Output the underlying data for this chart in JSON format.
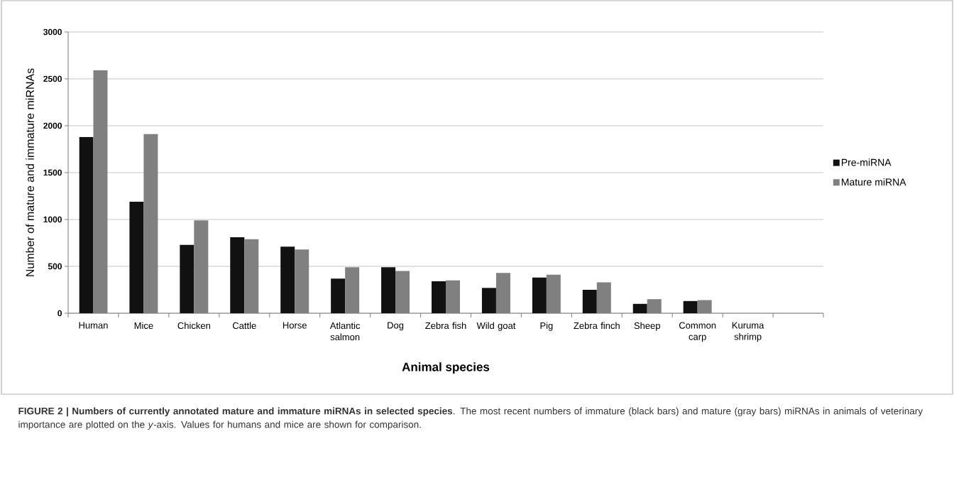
{
  "chart_data": {
    "type": "bar",
    "xlabel": "Animal species",
    "ylabel": "Number of mature and immature miRNAs",
    "categories": [
      "Human",
      "Mice",
      "Chicken",
      "Cattle",
      "Horse",
      "Atlantic salmon",
      "Dog",
      "Zebra fish",
      "Wild goat",
      "Pig",
      "Zebra finch",
      "Sheep",
      "Common carp",
      "Kuruma shrimp",
      null
    ],
    "series": [
      {
        "name": "Pre-miRNA",
        "color": "#111111",
        "values": [
          1880,
          1190,
          730,
          810,
          710,
          370,
          490,
          340,
          270,
          380,
          250,
          100,
          130,
          0,
          null
        ]
      },
      {
        "name": "Mature miRNA",
        "color": "#808080",
        "values": [
          2590,
          1910,
          990,
          790,
          680,
          490,
          450,
          350,
          430,
          410,
          330,
          150,
          140,
          0,
          null
        ]
      }
    ],
    "ylim": [
      0,
      3000
    ],
    "yticks": [
      0,
      500,
      1000,
      1500,
      2000,
      2500,
      3000
    ],
    "grid": "y",
    "legend": "right",
    "annotations": [
      "**FIGURE 2 | Numbers of currently annotated mature and immature miRNAs in selected species**. The most recent numbers of immature (black bars) and mature (gray bars) miRNAs in animals of veterinary importance are plotted on the *y*-axis. Values for humans and mice are shown for comparison."
    ]
  }
}
